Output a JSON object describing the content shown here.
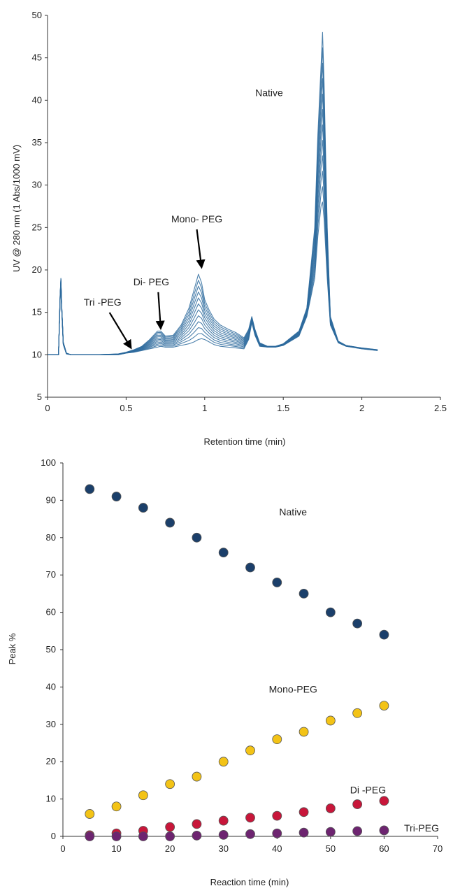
{
  "chart_data": [
    {
      "type": "line",
      "title": "",
      "xlabel": "Retention time (min)",
      "ylabel": "UV @ 280 nm (1 Abs/1000 mV)",
      "xlim": [
        0,
        2.5
      ],
      "ylim": [
        5,
        50
      ],
      "xticks": [
        0,
        0.5,
        1,
        1.5,
        2,
        2.5
      ],
      "xtick_labels": [
        "0",
        "0.5",
        "1",
        "1.5",
        "2",
        "2.5"
      ],
      "yticks": [
        5,
        10,
        15,
        20,
        25,
        30,
        35,
        40,
        45,
        50
      ],
      "ytick_labels": [
        "5",
        "10",
        "15",
        "20",
        "25",
        "30",
        "35",
        "40",
        "45",
        "50"
      ],
      "grid": false,
      "line_color": "#2e6b9e",
      "overlay_count": 12,
      "envelope": {
        "x": [
          0,
          0.07,
          0.08,
          0.085,
          0.09,
          0.1,
          0.12,
          0.15,
          0.3,
          0.45,
          0.5,
          0.55,
          0.6,
          0.65,
          0.7,
          0.72,
          0.75,
          0.8,
          0.85,
          0.9,
          0.93,
          0.96,
          0.98,
          1.0,
          1.03,
          1.06,
          1.1,
          1.15,
          1.2,
          1.25,
          1.28,
          1.3,
          1.32,
          1.35,
          1.4,
          1.45,
          1.5,
          1.6,
          1.65,
          1.7,
          1.72,
          1.74,
          1.75,
          1.76,
          1.78,
          1.8,
          1.85,
          1.9,
          2.0,
          2.1
        ],
        "top": [
          10.0,
          10.0,
          17.0,
          19.0,
          16.0,
          11.5,
          10.2,
          10.0,
          10.0,
          10.1,
          10.3,
          10.6,
          11.0,
          11.8,
          12.8,
          12.8,
          12.2,
          12.3,
          13.5,
          15.5,
          17.5,
          19.5,
          18.5,
          16.5,
          15.2,
          14.2,
          13.5,
          13.0,
          12.6,
          12.0,
          13.0,
          14.5,
          13.0,
          11.4,
          11.0,
          11.0,
          11.3,
          12.8,
          15.5,
          25.0,
          36.0,
          44.0,
          48.0,
          42.0,
          25.0,
          14.5,
          11.6,
          11.1,
          10.8,
          10.6
        ],
        "bottom": [
          10.0,
          10.0,
          16.5,
          18.5,
          15.5,
          11.2,
          10.1,
          10.0,
          10.0,
          10.0,
          10.2,
          10.3,
          10.5,
          10.7,
          10.9,
          11.0,
          10.9,
          10.9,
          11.1,
          11.3,
          11.5,
          11.8,
          11.9,
          11.8,
          11.5,
          11.2,
          11.0,
          10.9,
          10.8,
          10.7,
          11.8,
          13.8,
          12.3,
          11.0,
          10.9,
          10.9,
          11.1,
          12.2,
          14.5,
          19.0,
          24.0,
          27.5,
          28.0,
          26.0,
          19.0,
          13.5,
          11.4,
          11.0,
          10.7,
          10.5
        ]
      },
      "annotations": [
        {
          "text": "Native",
          "x": 1.41,
          "y": 40.5
        },
        {
          "text": "Mono- PEG",
          "x": 0.95,
          "y": 25.6,
          "arrow_to": [
            0.98,
            20.0
          ]
        },
        {
          "text": "Di- PEG",
          "x": 0.66,
          "y": 18.2,
          "arrow_to": [
            0.72,
            12.8
          ]
        },
        {
          "text": "Tri -PEG",
          "x": 0.35,
          "y": 15.8,
          "arrow_to": [
            0.53,
            10.5
          ]
        }
      ]
    },
    {
      "type": "scatter",
      "title": "",
      "xlabel": "Reaction time (min)",
      "ylabel": "Peak %",
      "xlim": [
        0,
        70
      ],
      "ylim": [
        0,
        100
      ],
      "xticks": [
        0,
        10,
        20,
        30,
        40,
        50,
        60,
        70
      ],
      "xtick_labels": [
        "0",
        "10",
        "20",
        "30",
        "40",
        "50",
        "60",
        "70"
      ],
      "yticks": [
        0,
        10,
        20,
        30,
        40,
        50,
        60,
        70,
        80,
        90,
        100
      ],
      "ytick_labels": [
        "0",
        "10",
        "20",
        "30",
        "40",
        "50",
        "60",
        "70",
        "80",
        "90",
        "100"
      ],
      "grid": false,
      "x": [
        5,
        10,
        15,
        20,
        25,
        30,
        35,
        40,
        45,
        50,
        55,
        60
      ],
      "series": [
        {
          "name": "Native",
          "color": "#1b3f6a",
          "values": [
            93,
            91,
            88,
            84,
            80,
            76,
            72,
            68,
            65,
            60,
            57,
            54
          ],
          "label_pos": [
            43,
            86
          ]
        },
        {
          "name": "Mono-PEG",
          "color": "#f3c316",
          "values": [
            6,
            8,
            11,
            14,
            16,
            20,
            23,
            26,
            28,
            31,
            33,
            35
          ],
          "label_pos": [
            43,
            38.5
          ]
        },
        {
          "name": "Di -PEG",
          "color": "#c8163a",
          "values": [
            0.3,
            0.8,
            1.5,
            2.5,
            3.3,
            4.2,
            5,
            5.5,
            6.5,
            7.5,
            8.6,
            9.5
          ],
          "label_pos": [
            57,
            11.5
          ]
        },
        {
          "name": "Tri-PEG",
          "color": "#6d2470",
          "values": [
            0,
            0,
            0,
            0,
            0.2,
            0.4,
            0.6,
            0.8,
            1,
            1.2,
            1.4,
            1.6
          ],
          "label_pos": [
            67,
            1.3
          ]
        }
      ]
    }
  ]
}
